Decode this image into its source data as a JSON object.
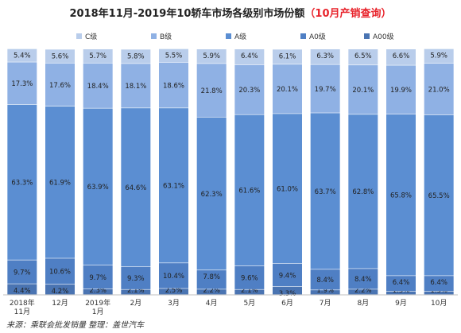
{
  "title": "2018年11月-2019年10轿车市场各级别市场份额",
  "title_highlight": "（10月产销查询）",
  "source": "来源：乘联会批发销量   整理：盖世汽车",
  "colors": {
    "A00": "#4a74b2",
    "A0": "#4f7fc4",
    "A": "#5b8ed2",
    "B": "#8fb1e4",
    "C": "#b9cdeb"
  },
  "chart_data": {
    "type": "bar",
    "stacked": true,
    "categories": [
      "2018年\n11月",
      "12月",
      "2019年\n1月",
      "2月",
      "3月",
      "4月",
      "5月",
      "6月",
      "7月",
      "8月",
      "9月",
      "10月"
    ],
    "series": [
      {
        "name": "A00级",
        "values": [
          4.4,
          4.2,
          2.3,
          2.1,
          2.5,
          2.2,
          2.1,
          3.3,
          1.9,
          2.2,
          1.3,
          1.3
        ]
      },
      {
        "name": "A0级",
        "values": [
          9.7,
          10.6,
          9.7,
          9.3,
          10.4,
          7.8,
          9.6,
          9.4,
          8.4,
          8.4,
          6.4,
          6.4
        ]
      },
      {
        "name": "A级",
        "values": [
          63.3,
          61.9,
          63.9,
          64.6,
          63.1,
          62.3,
          61.6,
          61.0,
          63.7,
          62.8,
          65.8,
          65.5
        ]
      },
      {
        "name": "B级",
        "values": [
          17.3,
          17.6,
          18.4,
          18.1,
          18.6,
          21.8,
          20.3,
          20.1,
          19.7,
          20.1,
          19.9,
          21.0
        ]
      },
      {
        "name": "C级",
        "values": [
          5.4,
          5.6,
          5.7,
          5.8,
          5.5,
          5.9,
          6.4,
          6.1,
          6.3,
          6.5,
          6.6,
          5.9
        ]
      }
    ],
    "legend_order": [
      "C级",
      "B级",
      "A级",
      "A0级",
      "A00级"
    ],
    "legend_position": "top",
    "ylim": [
      0,
      100
    ],
    "value_suffix": "%"
  }
}
